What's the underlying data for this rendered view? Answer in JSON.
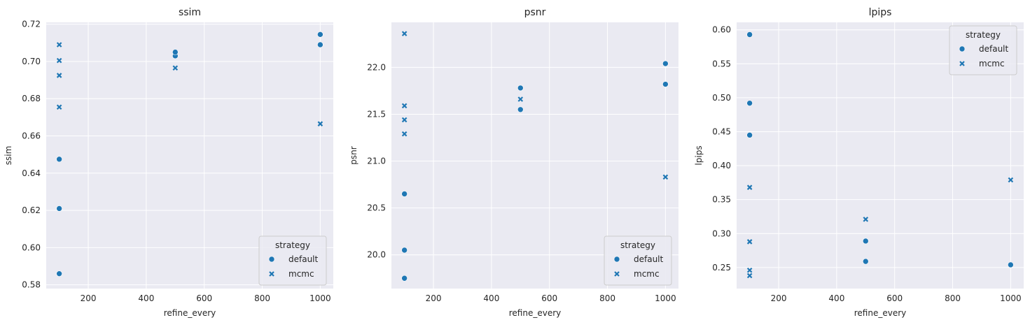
{
  "chart_data": [
    {
      "type": "scatter",
      "title": "ssim",
      "xlabel": "refine_every",
      "ylabel": "ssim",
      "xlim": [
        55,
        1045
      ],
      "ylim": [
        0.578,
        0.721
      ],
      "xticks": [
        200,
        400,
        600,
        800,
        1000
      ],
      "yticks": [
        0.58,
        0.6,
        0.62,
        0.64,
        0.66,
        0.68,
        0.7,
        0.72
      ],
      "ytick_decimals": 2,
      "grid": true,
      "legend": {
        "title": "strategy",
        "placement": "lower-right"
      },
      "series": [
        {
          "name": "default",
          "marker": "circle",
          "color": "#1f77b4",
          "x": [
            100,
            100,
            100,
            500,
            500,
            1000,
            1000
          ],
          "y": [
            0.586,
            0.621,
            0.6475,
            0.703,
            0.705,
            0.709,
            0.7145
          ]
        },
        {
          "name": "mcmc",
          "marker": "x",
          "color": "#1f77b4",
          "x": [
            100,
            100,
            100,
            100,
            500,
            1000
          ],
          "y": [
            0.6755,
            0.6925,
            0.7005,
            0.709,
            0.6965,
            0.6665
          ]
        }
      ]
    },
    {
      "type": "scatter",
      "title": "psnr",
      "xlabel": "refine_every",
      "ylabel": "psnr",
      "xlim": [
        55,
        1045
      ],
      "ylim": [
        19.64,
        22.48
      ],
      "xticks": [
        200,
        400,
        600,
        800,
        1000
      ],
      "yticks": [
        20.0,
        20.5,
        21.0,
        21.5,
        22.0
      ],
      "ytick_decimals": 1,
      "grid": true,
      "legend": {
        "title": "strategy",
        "placement": "lower-right"
      },
      "series": [
        {
          "name": "default",
          "marker": "circle",
          "color": "#1f77b4",
          "x": [
            100,
            100,
            100,
            500,
            500,
            1000,
            1000
          ],
          "y": [
            19.75,
            20.05,
            20.65,
            21.55,
            21.78,
            21.82,
            22.04
          ]
        },
        {
          "name": "mcmc",
          "marker": "x",
          "color": "#1f77b4",
          "x": [
            100,
            100,
            100,
            100,
            500,
            1000
          ],
          "y": [
            21.29,
            21.44,
            21.59,
            22.36,
            21.66,
            20.83
          ]
        }
      ]
    },
    {
      "type": "scatter",
      "title": "lpips",
      "xlabel": "refine_every",
      "ylabel": "lpips",
      "xlim": [
        55,
        1045
      ],
      "ylim": [
        0.219,
        0.611
      ],
      "xticks": [
        200,
        400,
        600,
        800,
        1000
      ],
      "yticks": [
        0.25,
        0.3,
        0.35,
        0.4,
        0.45,
        0.5,
        0.55,
        0.6
      ],
      "ytick_decimals": 2,
      "grid": true,
      "legend": {
        "title": "strategy",
        "placement": "upper-right"
      },
      "series": [
        {
          "name": "default",
          "marker": "circle",
          "color": "#1f77b4",
          "x": [
            100,
            100,
            100,
            500,
            500,
            1000
          ],
          "y": [
            0.593,
            0.492,
            0.445,
            0.289,
            0.259,
            0.254
          ]
        },
        {
          "name": "mcmc",
          "marker": "x",
          "color": "#1f77b4",
          "x": [
            100,
            100,
            100,
            100,
            500,
            1000
          ],
          "y": [
            0.368,
            0.288,
            0.246,
            0.238,
            0.321,
            0.379
          ]
        }
      ]
    }
  ]
}
